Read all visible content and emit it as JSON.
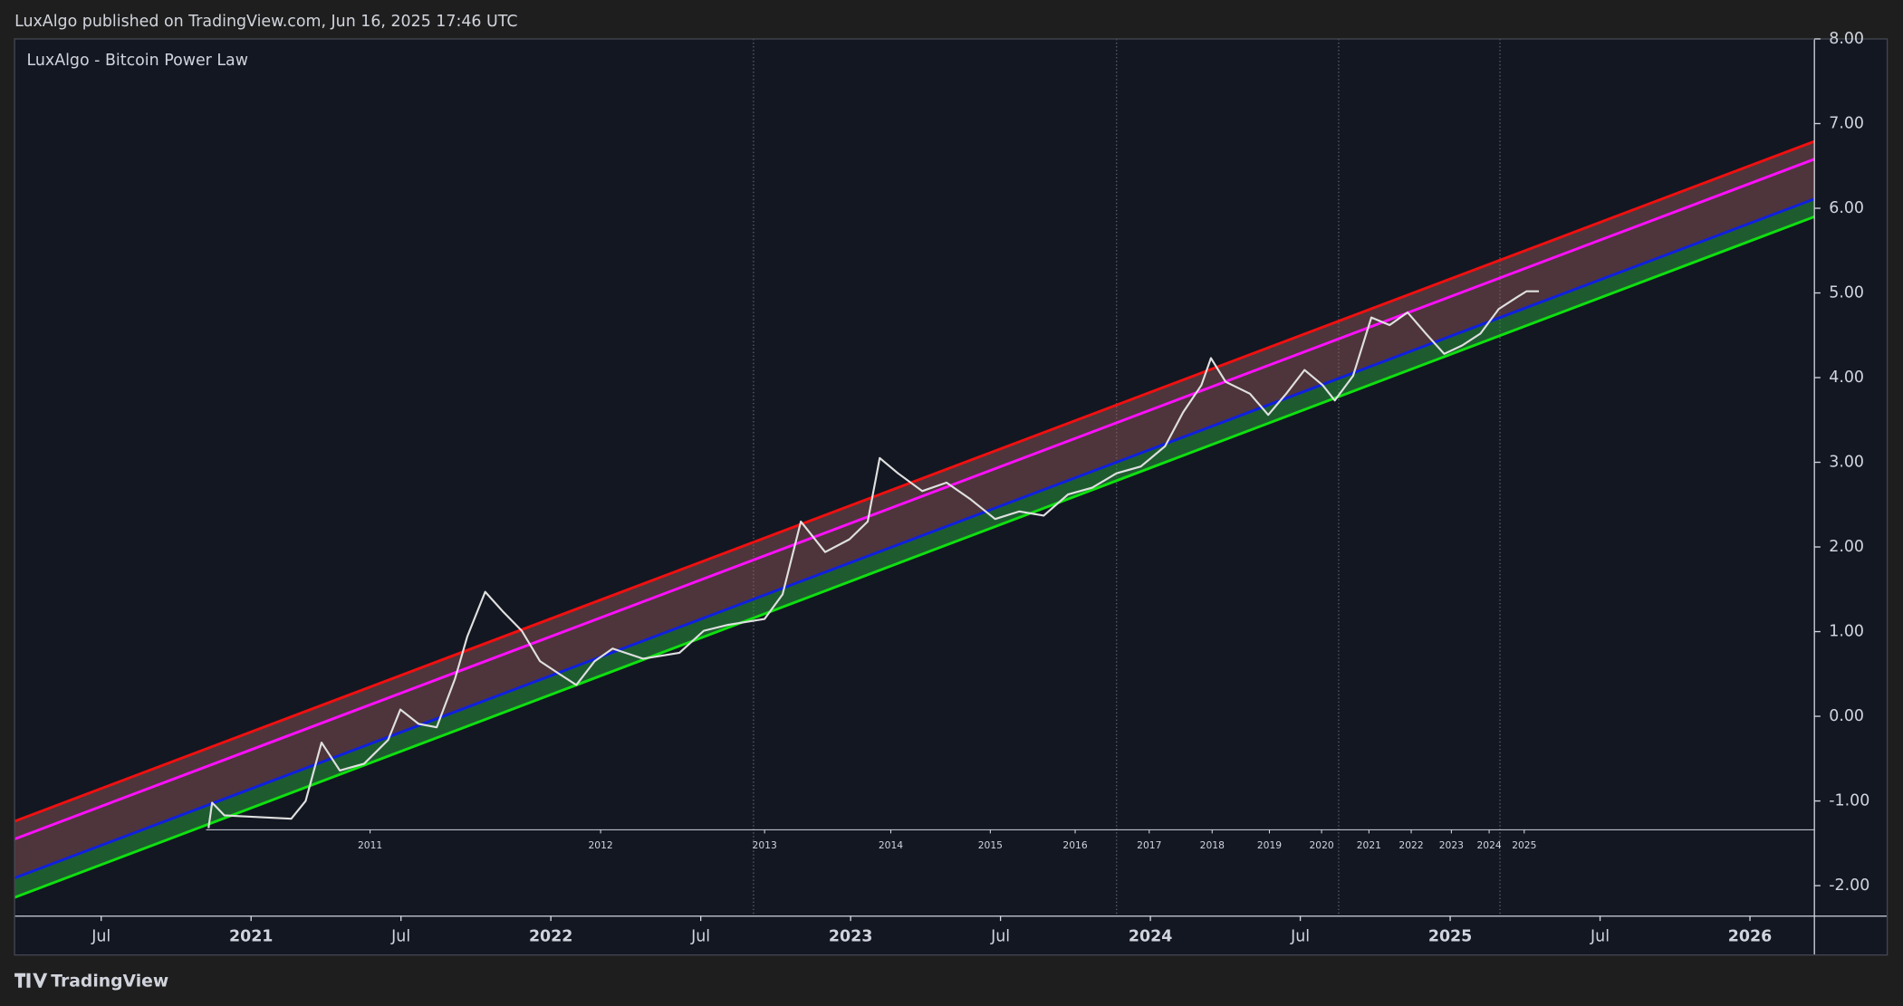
{
  "header": "LuxAlgo published on TradingView.com, Jun 16, 2025 17:46 UTC",
  "footer": "TradingView",
  "chart_data": {
    "type": "line",
    "title": "LuxAlgo - Bitcoin Power Law",
    "xlim": [
      2020.211,
      2026.215
    ],
    "ylim": [
      -2.36,
      8.0
    ],
    "xticks": [
      {
        "value": 2020.5,
        "label": "Jul"
      },
      2021,
      {
        "value": 2021.5,
        "label": "Jul"
      },
      2022,
      {
        "value": 2022.5,
        "label": "Jul"
      },
      2023,
      {
        "value": 2023.5,
        "label": "Jul"
      },
      2024,
      {
        "value": 2024.5,
        "label": "Jul"
      },
      2025,
      {
        "value": 2025.5,
        "label": "Jul"
      },
      2026
    ],
    "yticks": [
      {
        "value": 8,
        "label": "8.00"
      },
      {
        "value": 7,
        "label": "7.00"
      },
      {
        "value": 6,
        "label": "6.00"
      },
      {
        "value": 5,
        "label": "5.00"
      },
      {
        "value": 4,
        "label": "4.00"
      },
      {
        "value": 3,
        "label": "3.00"
      },
      {
        "value": 2,
        "label": "2.00"
      },
      {
        "value": 1,
        "label": "1.00"
      },
      {
        "value": 0,
        "label": "0.00"
      },
      {
        "value": -1,
        "label": "-1.00"
      },
      {
        "value": -2,
        "label": "-2.00"
      }
    ],
    "x2ticks": [
      {
        "value": 2021.397,
        "label": "2011"
      },
      {
        "value": 2022.166,
        "label": "2012"
      },
      {
        "value": 2022.713,
        "label": "2013"
      },
      {
        "value": 2023.134,
        "label": "2014"
      },
      {
        "value": 2023.466,
        "label": "2015"
      },
      {
        "value": 2023.749,
        "label": "2016"
      },
      {
        "value": 2023.996,
        "label": "2017"
      },
      {
        "value": 2024.206,
        "label": "2018"
      },
      {
        "value": 2024.397,
        "label": "2019"
      },
      {
        "value": 2024.571,
        "label": "2020"
      },
      {
        "value": 2024.729,
        "label": "2021"
      },
      {
        "value": 2024.87,
        "label": "2022"
      },
      {
        "value": 2025.004,
        "label": "2023"
      },
      {
        "value": 2025.13,
        "label": "2024"
      },
      {
        "value": 2025.247,
        "label": "2025"
      }
    ],
    "x2_axis_y": -1.34,
    "vlines": [
      2022.676,
      2023.887,
      2024.628,
      2025.166
    ],
    "series": [
      {
        "color": "#f01010",
        "x": [
          2020.211,
          2026.215
        ],
        "values": [
          -1.24,
          6.79
        ]
      },
      {
        "color": "#ff10ff",
        "x": [
          2020.211,
          2026.215
        ],
        "values": [
          -1.45,
          6.58
        ]
      },
      {
        "color": "#1020e0",
        "x": [
          2020.211,
          2026.215
        ],
        "values": [
          -1.91,
          6.11
        ]
      },
      {
        "color": "#10e010",
        "x": [
          2020.211,
          2026.215
        ],
        "values": [
          -2.14,
          5.9
        ]
      },
      {
        "color": "#e0e0e0",
        "x": [
          2020.858,
          2020.87,
          2020.911,
          2021.134,
          2021.182,
          2021.235,
          2021.296,
          2021.377,
          2021.457,
          2021.498,
          2021.559,
          2021.619,
          2021.68,
          2021.721,
          2021.781,
          2021.842,
          2021.903,
          2021.964,
          2022.024,
          2022.085,
          2022.146,
          2022.206,
          2022.308,
          2022.429,
          2022.51,
          2022.591,
          2022.713,
          2022.773,
          2022.834,
          2022.915,
          2022.996,
          2023.057,
          2023.097,
          2023.158,
          2023.239,
          2023.32,
          2023.401,
          2023.482,
          2023.563,
          2023.644,
          2023.725,
          2023.806,
          2023.887,
          2023.968,
          2024.049,
          2024.109,
          2024.17,
          2024.202,
          2024.251,
          2024.332,
          2024.393,
          2024.453,
          2024.514,
          2024.575,
          2024.615,
          2024.676,
          2024.737,
          2024.798,
          2024.858,
          2024.919,
          2024.98,
          2025.04,
          2025.101,
          2025.162,
          2025.223,
          2025.255,
          2025.296
        ],
        "values": [
          -1.32,
          -1.02,
          -1.17,
          -1.21,
          -1.0,
          -0.31,
          -0.64,
          -0.56,
          -0.28,
          0.08,
          -0.09,
          -0.13,
          0.44,
          0.94,
          1.47,
          1.23,
          1.01,
          0.65,
          0.51,
          0.37,
          0.65,
          0.8,
          0.68,
          0.75,
          1.01,
          1.08,
          1.15,
          1.44,
          2.3,
          1.94,
          2.09,
          2.3,
          3.05,
          2.87,
          2.66,
          2.76,
          2.56,
          2.33,
          2.42,
          2.37,
          2.62,
          2.7,
          2.87,
          2.95,
          3.19,
          3.59,
          3.91,
          4.23,
          3.95,
          3.81,
          3.56,
          3.81,
          4.09,
          3.91,
          3.73,
          4.02,
          4.71,
          4.62,
          4.77,
          4.52,
          4.28,
          4.38,
          4.52,
          4.81,
          4.95,
          5.02,
          5.02
        ]
      }
    ]
  }
}
